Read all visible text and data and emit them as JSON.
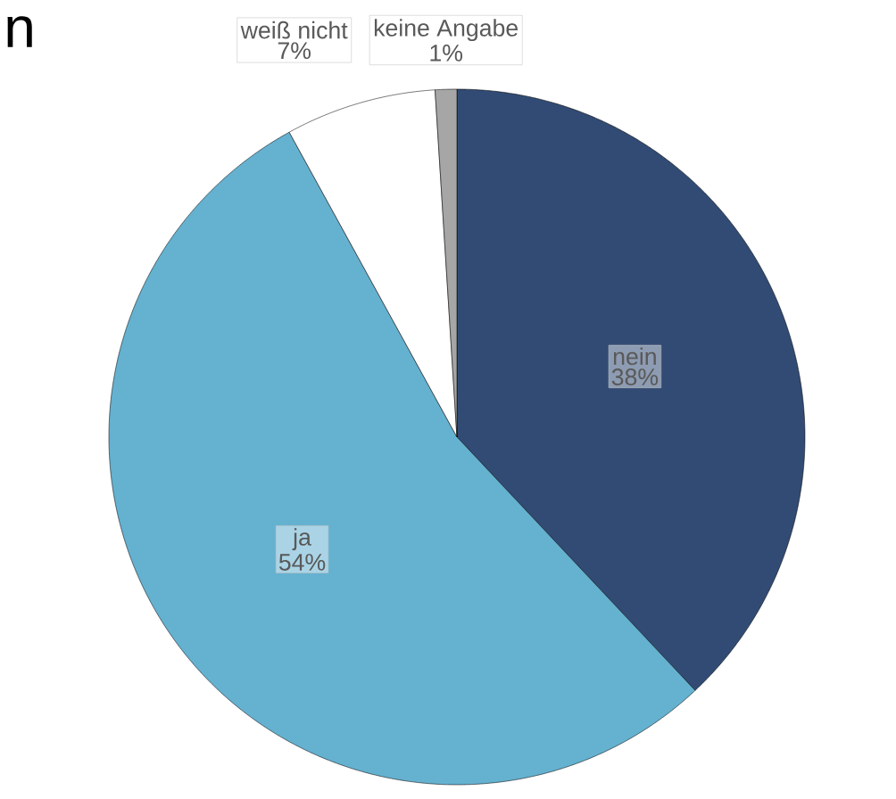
{
  "chart_data": {
    "type": "pie",
    "title": "n",
    "categories": [
      "nein",
      "ja",
      "weiß nicht",
      "keine Angabe"
    ],
    "values": [
      38,
      54,
      7,
      1
    ],
    "value_labels": [
      "38%",
      "54%",
      "7%",
      "1%"
    ],
    "colors": [
      "#314b74",
      "#65b1d0",
      "#ffffff",
      "#a6a6a6"
    ]
  }
}
